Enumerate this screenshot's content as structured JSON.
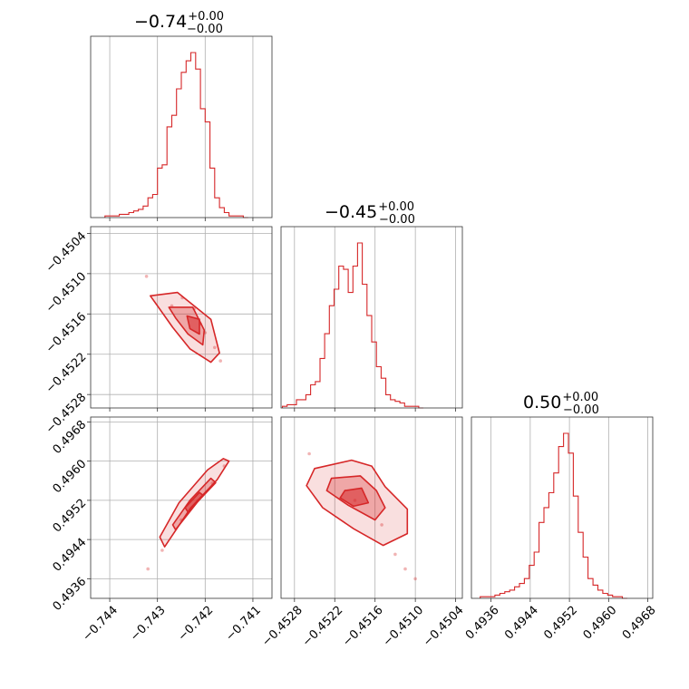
{
  "chart_data": {
    "type": "corner",
    "color": "#d62728",
    "grid": true,
    "parameters": [
      {
        "title_value": "−0.74",
        "title_plus": "+0.00",
        "title_minus": "−0.00",
        "range": [
          -0.7444,
          -0.7406
        ],
        "ticks": [
          -0.744,
          -0.743,
          -0.742,
          -0.741
        ],
        "tick_labels": [
          "−0.744",
          "−0.743",
          "−0.742",
          "−0.741"
        ],
        "hist_bin_start": -0.7441,
        "hist_bin_width": 0.0001,
        "hist_counts": [
          1,
          1,
          1,
          2,
          2,
          3,
          4,
          5,
          7,
          12,
          14,
          30,
          32,
          55,
          62,
          78,
          88,
          95,
          100,
          90,
          66,
          58,
          30,
          12,
          6,
          3,
          1,
          1,
          1,
          0
        ]
      },
      {
        "title_value": "−0.45",
        "title_plus": "+0.00",
        "title_minus": "−0.00",
        "range": [
          -0.453,
          -0.4503
        ],
        "ticks": [
          -0.4528,
          -0.4522,
          -0.4516,
          -0.451,
          -0.4504
        ],
        "tick_labels": [
          "−0.4528",
          "−0.4522",
          "−0.4516",
          "−0.4510",
          "−0.4504"
        ],
        "hist_bin_start": -0.45298,
        "hist_bin_width": 7e-05,
        "hist_counts": [
          1,
          2,
          2,
          5,
          5,
          8,
          14,
          16,
          30,
          45,
          62,
          72,
          86,
          84,
          70,
          86,
          100,
          75,
          56,
          40,
          25,
          18,
          8,
          5,
          4,
          3,
          1,
          1,
          1,
          0
        ]
      },
      {
        "title_value": "0.50",
        "title_plus": "+0.00",
        "title_minus": "−0.00",
        "range": [
          0.4932,
          0.4969
        ],
        "ticks": [
          0.4936,
          0.4944,
          0.4952,
          0.496,
          0.4968
        ],
        "tick_labels": [
          "0.4936",
          "0.4944",
          "0.4952",
          "0.4960",
          "0.4968"
        ],
        "hist_bin_start": 0.49338,
        "hist_bin_width": 0.0001,
        "hist_counts": [
          1,
          1,
          1,
          2,
          3,
          4,
          5,
          7,
          9,
          12,
          20,
          28,
          46,
          55,
          64,
          76,
          92,
          100,
          88,
          62,
          40,
          25,
          12,
          8,
          5,
          3,
          2,
          1,
          1,
          0
        ]
      }
    ],
    "joint": [
      {
        "x_param": 0,
        "y_param": 1,
        "contours": [
          [
            [
              -0.74315,
              -0.45133
            ],
            [
              -0.74258,
              -0.45128
            ],
            [
              -0.74188,
              -0.45168
            ],
            [
              -0.7417,
              -0.45218
            ],
            [
              -0.74188,
              -0.45232
            ],
            [
              -0.74232,
              -0.45212
            ],
            [
              -0.74268,
              -0.4518
            ],
            [
              -0.743,
              -0.45148
            ]
          ],
          [
            [
              -0.74276,
              -0.4515
            ],
            [
              -0.74226,
              -0.4515
            ],
            [
              -0.74202,
              -0.45184
            ],
            [
              -0.74205,
              -0.45206
            ],
            [
              -0.74236,
              -0.4519
            ],
            [
              -0.74262,
              -0.45166
            ]
          ],
          [
            [
              -0.74238,
              -0.45163
            ],
            [
              -0.74212,
              -0.45168
            ],
            [
              -0.74212,
              -0.4519
            ],
            [
              -0.74232,
              -0.45182
            ]
          ]
        ],
        "points": [
          [
            -0.74323,
            -0.45104
          ],
          [
            -0.74248,
            -0.45136
          ],
          [
            -0.74223,
            -0.45152
          ],
          [
            -0.742,
            -0.45188
          ],
          [
            -0.74168,
            -0.4523
          ],
          [
            -0.7427,
            -0.45148
          ],
          [
            -0.7421,
            -0.45175
          ],
          [
            -0.7418,
            -0.4521
          ]
        ]
      },
      {
        "x_param": 0,
        "y_param": 2,
        "contours": [
          [
            [
              -0.74285,
              0.49425
            ],
            [
              -0.7423,
              0.49505
            ],
            [
              -0.74175,
              0.49562
            ],
            [
              -0.7415,
              0.496
            ],
            [
              -0.74162,
              0.49605
            ],
            [
              -0.74195,
              0.49582
            ],
            [
              -0.74255,
              0.49515
            ],
            [
              -0.74295,
              0.49445
            ]
          ],
          [
            [
              -0.74262,
              0.4946
            ],
            [
              -0.74215,
              0.49518
            ],
            [
              -0.74178,
              0.49556
            ],
            [
              -0.74188,
              0.49565
            ],
            [
              -0.74232,
              0.4952
            ],
            [
              -0.74268,
              0.4947
            ]
          ],
          [
            [
              -0.74236,
              0.49496
            ],
            [
              -0.74204,
              0.4953
            ],
            [
              -0.74212,
              0.49536
            ],
            [
              -0.74242,
              0.49505
            ]
          ]
        ],
        "points": [
          [
            -0.7432,
            0.4938
          ],
          [
            -0.7429,
            0.49418
          ],
          [
            -0.74215,
            0.4952
          ],
          [
            -0.74185,
            0.49555
          ],
          [
            -0.7416,
            0.4959
          ],
          [
            -0.7425,
            0.4948
          ]
        ]
      },
      {
        "x_param": 1,
        "y_param": 2,
        "contours": [
          [
            [
              -0.4525,
              0.49585
            ],
            [
              -0.45195,
              0.49602
            ],
            [
              -0.45165,
              0.4959
            ],
            [
              -0.45145,
              0.49548
            ],
            [
              -0.45112,
              0.49502
            ],
            [
              -0.45112,
              0.49452
            ],
            [
              -0.45148,
              0.49428
            ],
            [
              -0.45192,
              0.49462
            ],
            [
              -0.45238,
              0.49505
            ],
            [
              -0.45262,
              0.4955
            ]
          ],
          [
            [
              -0.45225,
              0.49565
            ],
            [
              -0.45182,
              0.4957
            ],
            [
              -0.45158,
              0.4954
            ],
            [
              -0.45145,
              0.49505
            ],
            [
              -0.4516,
              0.4948
            ],
            [
              -0.452,
              0.4951
            ],
            [
              -0.45232,
              0.4954
            ]
          ],
          [
            [
              -0.45205,
              0.4954
            ],
            [
              -0.4518,
              0.49545
            ],
            [
              -0.4517,
              0.49515
            ],
            [
              -0.45192,
              0.49508
            ],
            [
              -0.45212,
              0.49525
            ]
          ]
        ],
        "points": [
          [
            -0.45258,
            0.49615
          ],
          [
            -0.4513,
            0.4941
          ],
          [
            -0.45115,
            0.4938
          ],
          [
            -0.451,
            0.4936
          ],
          [
            -0.4519,
            0.4952
          ],
          [
            -0.4515,
            0.4947
          ]
        ]
      }
    ]
  }
}
